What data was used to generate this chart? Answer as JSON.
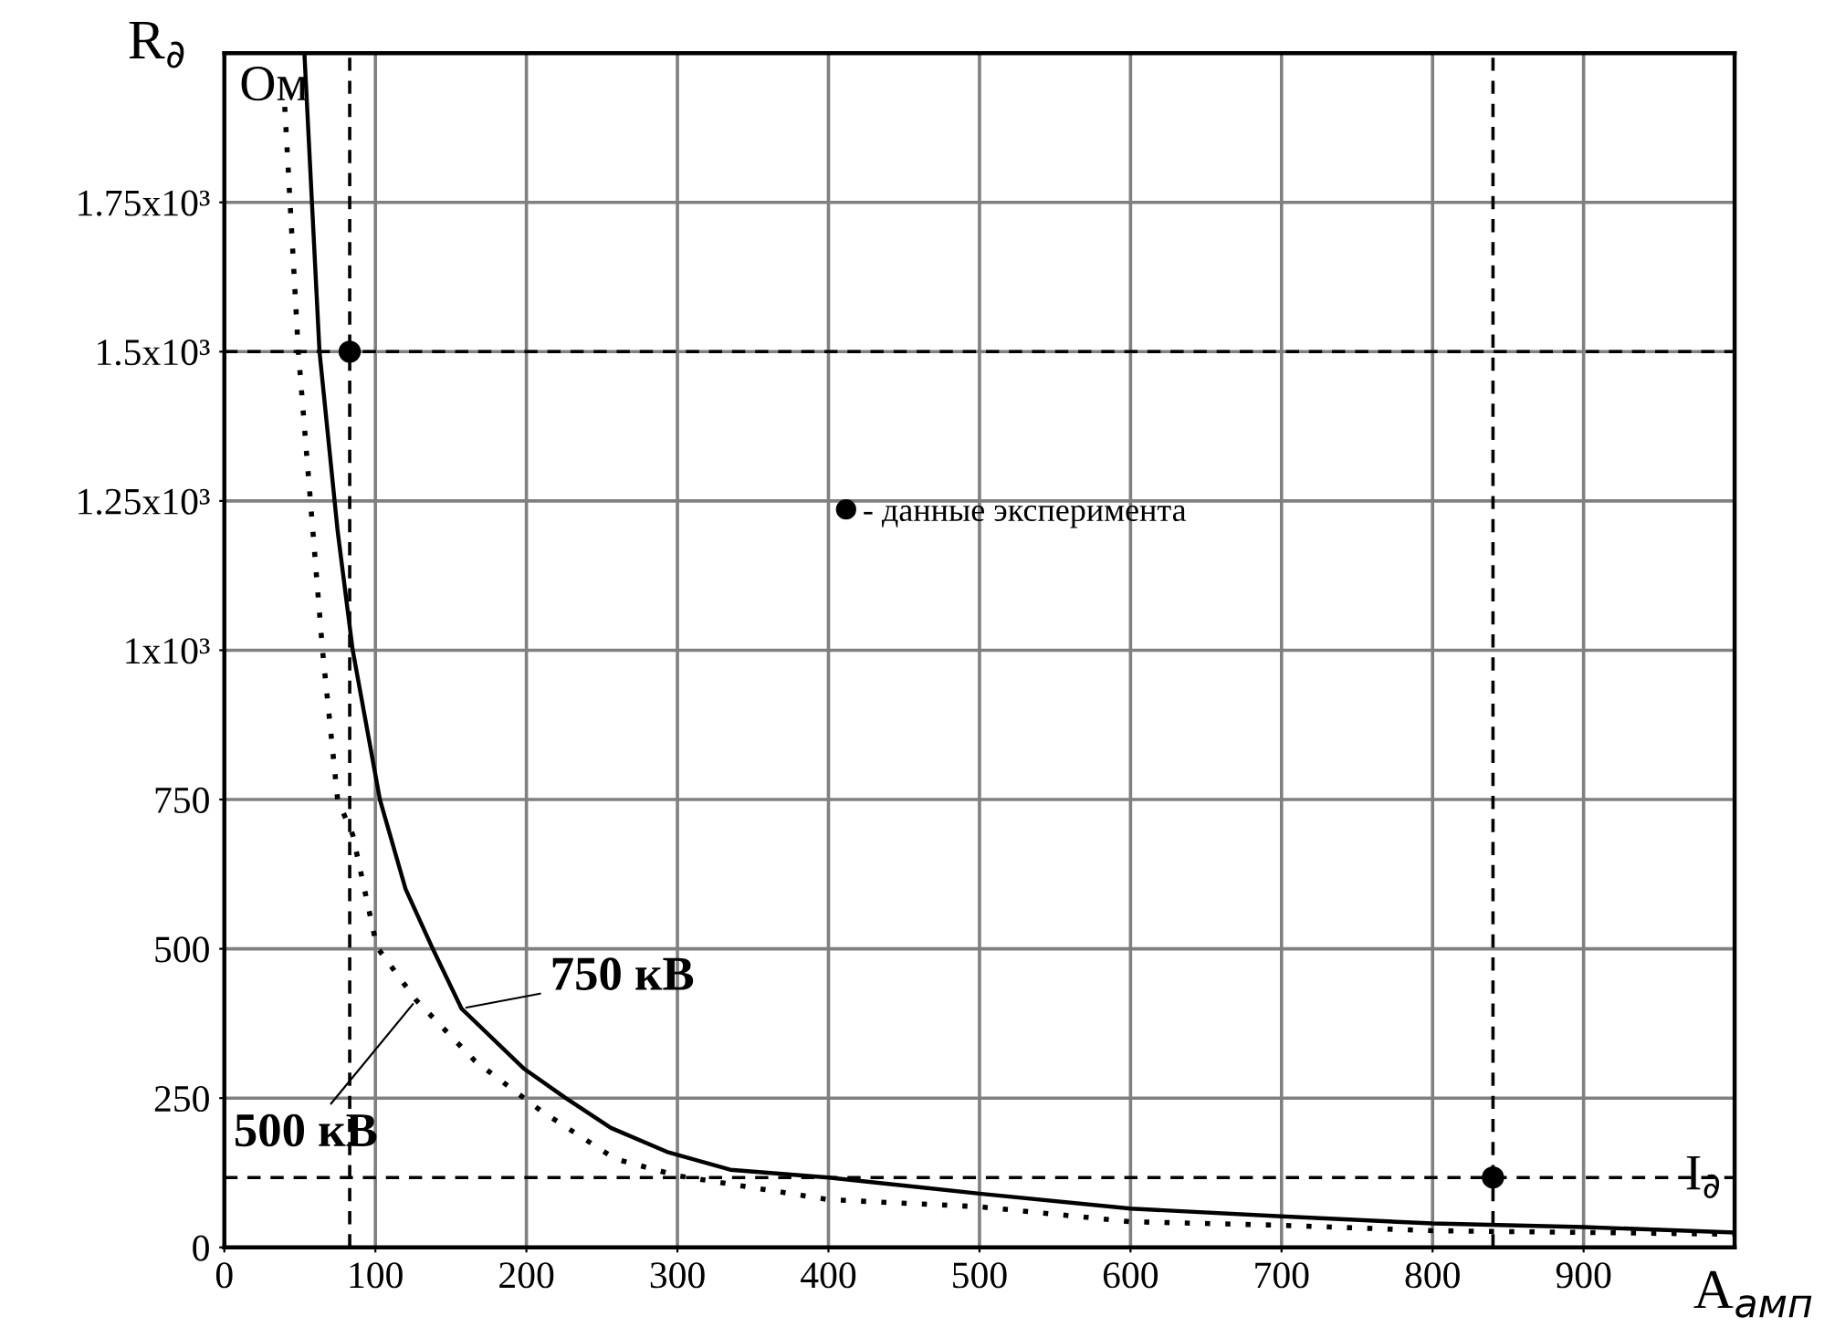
{
  "chart_data": {
    "type": "line",
    "xlabel": "A$_{амп}$",
    "ylabel": "R$_{∂}$",
    "xlim": [
      0,
      1000
    ],
    "ylim": [
      0,
      2000
    ],
    "xticks": [
      0,
      100,
      200,
      300,
      400,
      500,
      600,
      700,
      800,
      900
    ],
    "yticks": [
      0,
      250,
      500,
      750,
      {
        "value": 1000,
        "label": "1x10³"
      },
      {
        "value": 1250,
        "label": "1.25x10³"
      },
      {
        "value": 1500,
        "label": "1.5x10³"
      },
      {
        "value": 1750,
        "label": "1.75x10³"
      }
    ],
    "grid": true,
    "legend": "center",
    "series": [
      {
        "color": "#000000",
        "line_style": "solid",
        "x": [
          53,
          63,
          75,
          85,
          103,
          120,
          138,
          157,
          198,
          226,
          256,
          293,
          335,
          400,
          500,
          600,
          700,
          800,
          850,
          900,
          1000
        ],
        "values": [
          2000,
          1500,
          1200,
          1000,
          750,
          600,
          500,
          400,
          300,
          250,
          200,
          160,
          130,
          117,
          90,
          65,
          52,
          40,
          37,
          34,
          25
        ]
      },
      {
        "color": "#000000",
        "line_style": "dotted",
        "x": [
          40,
          49,
          65,
          75,
          85,
          101,
          127,
          166,
          210,
          259,
          300,
          400,
          500,
          600,
          700,
          800,
          1000
        ],
        "values": [
          1910,
          1500,
          1000,
          750,
          691,
          503,
          414,
          312,
          228,
          148,
          120,
          80,
          68,
          43,
          37,
          28,
          22
        ]
      },
      {
        "type": "scatter",
        "name": "- данные эксперимента",
        "color": "#000000",
        "marker": "circle",
        "x": [
          83,
          840
        ],
        "values": [
          1500,
          117
        ]
      }
    ],
    "ref_lines": [
      {
        "axis": "x",
        "value": 83,
        "line_style": "dashed"
      },
      {
        "axis": "x",
        "value": 840,
        "line_style": "dashed"
      },
      {
        "axis": "y",
        "value": 1500,
        "line_style": "dashed"
      },
      {
        "axis": "y",
        "value": 117,
        "label": "I$_{∂}$",
        "line_style": "dashed"
      }
    ],
    "annotations": [
      {
        "text": "750 кВ",
        "x": 157,
        "y": 400
      },
      {
        "text": "500 кВ",
        "x": 127,
        "y": 414
      },
      "Ом"
    ]
  }
}
